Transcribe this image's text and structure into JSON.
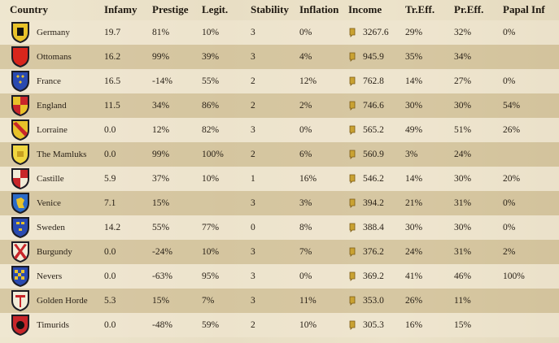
{
  "headers": {
    "country": "Country",
    "infamy": "Infamy",
    "prestige": "Prestige",
    "legit": "Legit.",
    "stability": "Stability",
    "inflation": "Inflation",
    "income": "Income",
    "tr_eff": "Tr.Eff.",
    "pr_eff": "Pr.Eff.",
    "papal_inf": "Papal Inf"
  },
  "rows": [
    {
      "name": "Germany",
      "infamy": "19.7",
      "prestige": "81%",
      "legit": "10%",
      "stability": "3",
      "inflation": "0%",
      "income": "3267.6",
      "tr_eff": "29%",
      "pr_eff": "32%",
      "papal": "0%",
      "shield": {
        "bg": "#e8c22a",
        "fg": "#111111",
        "icon": "eagle-icon"
      }
    },
    {
      "name": "Ottomans",
      "infamy": "16.2",
      "prestige": "99%",
      "legit": "39%",
      "stability": "3",
      "inflation": "4%",
      "income": "945.9",
      "tr_eff": "35%",
      "pr_eff": "34%",
      "papal": "",
      "shield": {
        "bg": "#d9261c",
        "fg": "#f2e6c0",
        "icon": "crescent-icon"
      }
    },
    {
      "name": "France",
      "infamy": "16.5",
      "prestige": "-14%",
      "legit": "55%",
      "stability": "2",
      "inflation": "12%",
      "income": "762.8",
      "tr_eff": "14%",
      "pr_eff": "27%",
      "papal": "0%",
      "shield": {
        "bg": "#2a4ab0",
        "fg": "#e8c22a",
        "icon": "fleur-de-lis-icon"
      }
    },
    {
      "name": "England",
      "infamy": "11.5",
      "prestige": "34%",
      "legit": "86%",
      "stability": "2",
      "inflation": "2%",
      "income": "746.6",
      "tr_eff": "30%",
      "pr_eff": "30%",
      "papal": "54%",
      "shield": {
        "bg": "#c8262a",
        "fg": "#e8c22a",
        "icon": "quartered-icon"
      }
    },
    {
      "name": "Lorraine",
      "infamy": "0.0",
      "prestige": "12%",
      "legit": "82%",
      "stability": "3",
      "inflation": "0%",
      "income": "565.2",
      "tr_eff": "49%",
      "pr_eff": "51%",
      "papal": "26%",
      "shield": {
        "bg": "#e8c22a",
        "fg": "#c8262a",
        "icon": "bend-icon"
      }
    },
    {
      "name": "The Mamluks",
      "infamy": "0.0",
      "prestige": "99%",
      "legit": "100%",
      "stability": "2",
      "inflation": "6%",
      "income": "560.9",
      "tr_eff": "3%",
      "pr_eff": "24%",
      "papal": "",
      "shield": {
        "bg": "#f0d640",
        "fg": "#c8a020",
        "icon": "plain-icon"
      }
    },
    {
      "name": "Castille",
      "infamy": "5.9",
      "prestige": "37%",
      "legit": "10%",
      "stability": "1",
      "inflation": "16%",
      "income": "546.2",
      "tr_eff": "14%",
      "pr_eff": "30%",
      "papal": "20%",
      "shield": {
        "bg": "#c8262a",
        "fg": "#f2ecd8",
        "icon": "castle-icon"
      }
    },
    {
      "name": "Venice",
      "infamy": "7.1",
      "prestige": "15%",
      "legit": "",
      "stability": "3",
      "inflation": "3%",
      "income": "394.2",
      "tr_eff": "21%",
      "pr_eff": "31%",
      "papal": "0%",
      "shield": {
        "bg": "#2a6ac8",
        "fg": "#e8c22a",
        "icon": "lion-icon"
      }
    },
    {
      "name": "Sweden",
      "infamy": "14.2",
      "prestige": "55%",
      "legit": "77%",
      "stability": "0",
      "inflation": "8%",
      "income": "388.4",
      "tr_eff": "30%",
      "pr_eff": "30%",
      "papal": "0%",
      "shield": {
        "bg": "#2a4ab0",
        "fg": "#e8c22a",
        "icon": "three-crowns-icon"
      }
    },
    {
      "name": "Burgundy",
      "infamy": "0.0",
      "prestige": "-24%",
      "legit": "10%",
      "stability": "3",
      "inflation": "7%",
      "income": "376.2",
      "tr_eff": "24%",
      "pr_eff": "31%",
      "papal": "2%",
      "shield": {
        "bg": "#f2ecd8",
        "fg": "#c8262a",
        "icon": "saltire-icon"
      }
    },
    {
      "name": "Nevers",
      "infamy": "0.0",
      "prestige": "-63%",
      "legit": "95%",
      "stability": "3",
      "inflation": "0%",
      "income": "369.2",
      "tr_eff": "41%",
      "pr_eff": "46%",
      "papal": "100%",
      "shield": {
        "bg": "#2a4ab0",
        "fg": "#e8c22a",
        "icon": "checkered-icon"
      }
    },
    {
      "name": "Golden Horde",
      "infamy": "5.3",
      "prestige": "15%",
      "legit": "7%",
      "stability": "3",
      "inflation": "11%",
      "income": "353.0",
      "tr_eff": "26%",
      "pr_eff": "11%",
      "papal": "",
      "shield": {
        "bg": "#f2ecd8",
        "fg": "#c8262a",
        "icon": "tamga-icon"
      }
    },
    {
      "name": "Timurids",
      "infamy": "0.0",
      "prestige": "-48%",
      "legit": "59%",
      "stability": "2",
      "inflation": "10%",
      "income": "305.3",
      "tr_eff": "16%",
      "pr_eff": "15%",
      "papal": "",
      "shield": {
        "bg": "#c8262a",
        "fg": "#111111",
        "icon": "circle-icon"
      }
    }
  ]
}
